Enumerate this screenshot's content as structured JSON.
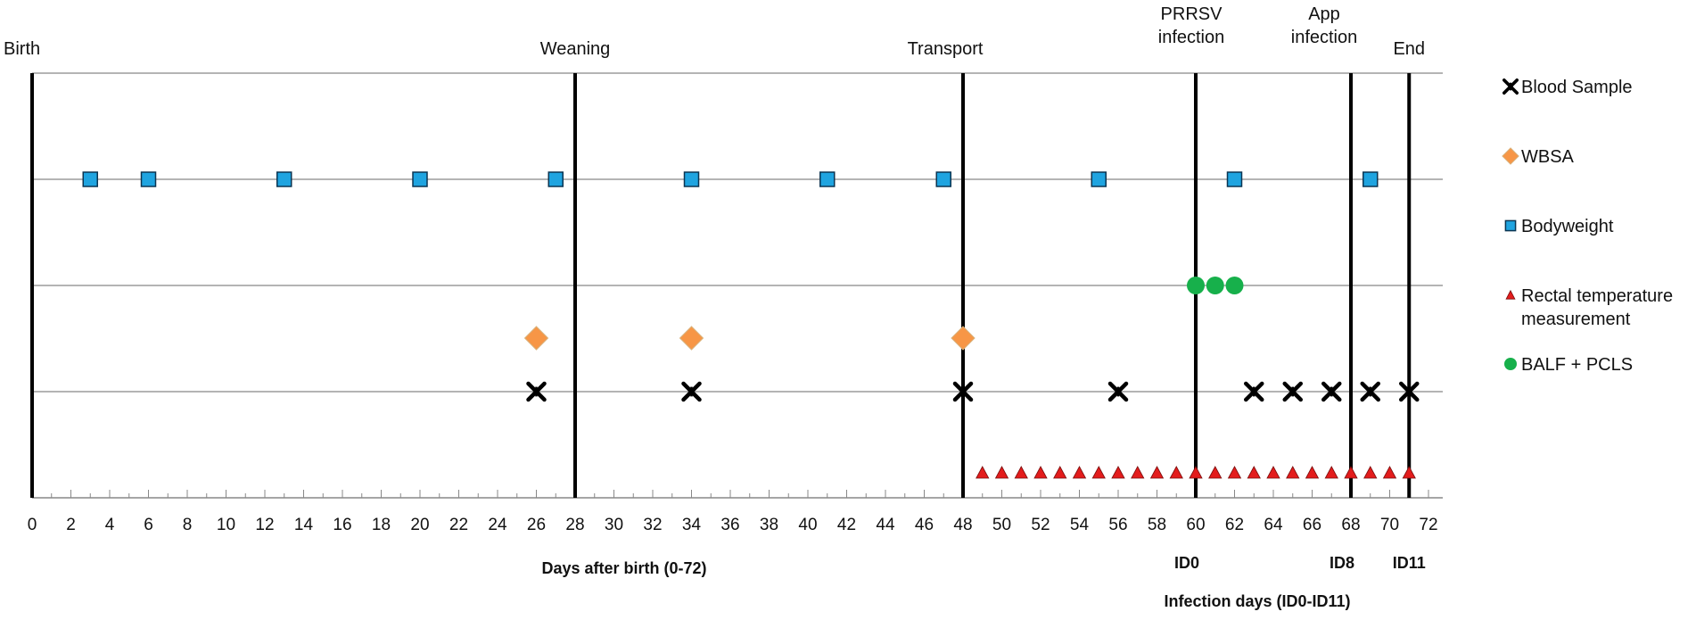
{
  "chart_data": {
    "type": "scatter",
    "xlabel": "Days after birth (0-72)",
    "secondary_xlabel": "Infection days  (ID0-ID11)",
    "xlim": [
      0,
      72
    ],
    "xticks": [
      0,
      2,
      4,
      6,
      8,
      10,
      12,
      14,
      16,
      18,
      20,
      22,
      24,
      26,
      28,
      30,
      32,
      34,
      36,
      38,
      40,
      42,
      44,
      46,
      48,
      50,
      52,
      54,
      56,
      58,
      60,
      62,
      64,
      66,
      68,
      70,
      72
    ],
    "grid": true,
    "events": [
      {
        "day": 0,
        "lines": [
          "Birth"
        ]
      },
      {
        "day": 28,
        "lines": [
          "Weaning"
        ]
      },
      {
        "day": 48,
        "lines": [
          "Transport"
        ]
      },
      {
        "day": 60,
        "lines": [
          "PRRSV",
          "infection"
        ]
      },
      {
        "day": 68,
        "lines": [
          "App",
          "infection"
        ]
      },
      {
        "day": 71,
        "lines": [
          "End"
        ]
      }
    ],
    "infection_day_labels": [
      {
        "day": 60,
        "label": "ID0"
      },
      {
        "day": 68,
        "label": "ID8"
      },
      {
        "day": 71,
        "label": "ID11"
      }
    ],
    "series": [
      {
        "name": "Blood Sample",
        "marker": "x",
        "color": "#000000",
        "days": [
          26,
          34,
          48,
          56,
          63,
          65,
          67,
          69,
          71
        ]
      },
      {
        "name": "WBSA",
        "marker": "diamond",
        "color": "#F79646",
        "days": [
          26,
          34,
          48
        ]
      },
      {
        "name": "Bodyweight",
        "marker": "square",
        "color": "#1FA4E0",
        "days": [
          3,
          6,
          13,
          20,
          27,
          34,
          41,
          47,
          55,
          62,
          69
        ]
      },
      {
        "name": "Rectal temperature measurement",
        "marker": "triangle",
        "color": "#E31C1C",
        "days": [
          49,
          50,
          51,
          52,
          53,
          54,
          55,
          56,
          57,
          58,
          59,
          60,
          61,
          62,
          63,
          64,
          65,
          66,
          67,
          68,
          69,
          70,
          71
        ]
      },
      {
        "name": "BALF + PCLS",
        "marker": "circle",
        "color": "#17B04B",
        "days": [
          60,
          61,
          62
        ]
      }
    ],
    "legend": [
      {
        "series": "Blood Sample",
        "lines": [
          "Blood Sample"
        ]
      },
      {
        "series": "WBSA",
        "lines": [
          "WBSA"
        ]
      },
      {
        "series": "Bodyweight",
        "lines": [
          "Bodyweight"
        ]
      },
      {
        "series": "Rectal temperature measurement",
        "lines": [
          "Rectal temperature",
          "measurement"
        ]
      },
      {
        "series": "BALF + PCLS",
        "lines": [
          "BALF + PCLS"
        ]
      }
    ],
    "legend_position": "right"
  }
}
